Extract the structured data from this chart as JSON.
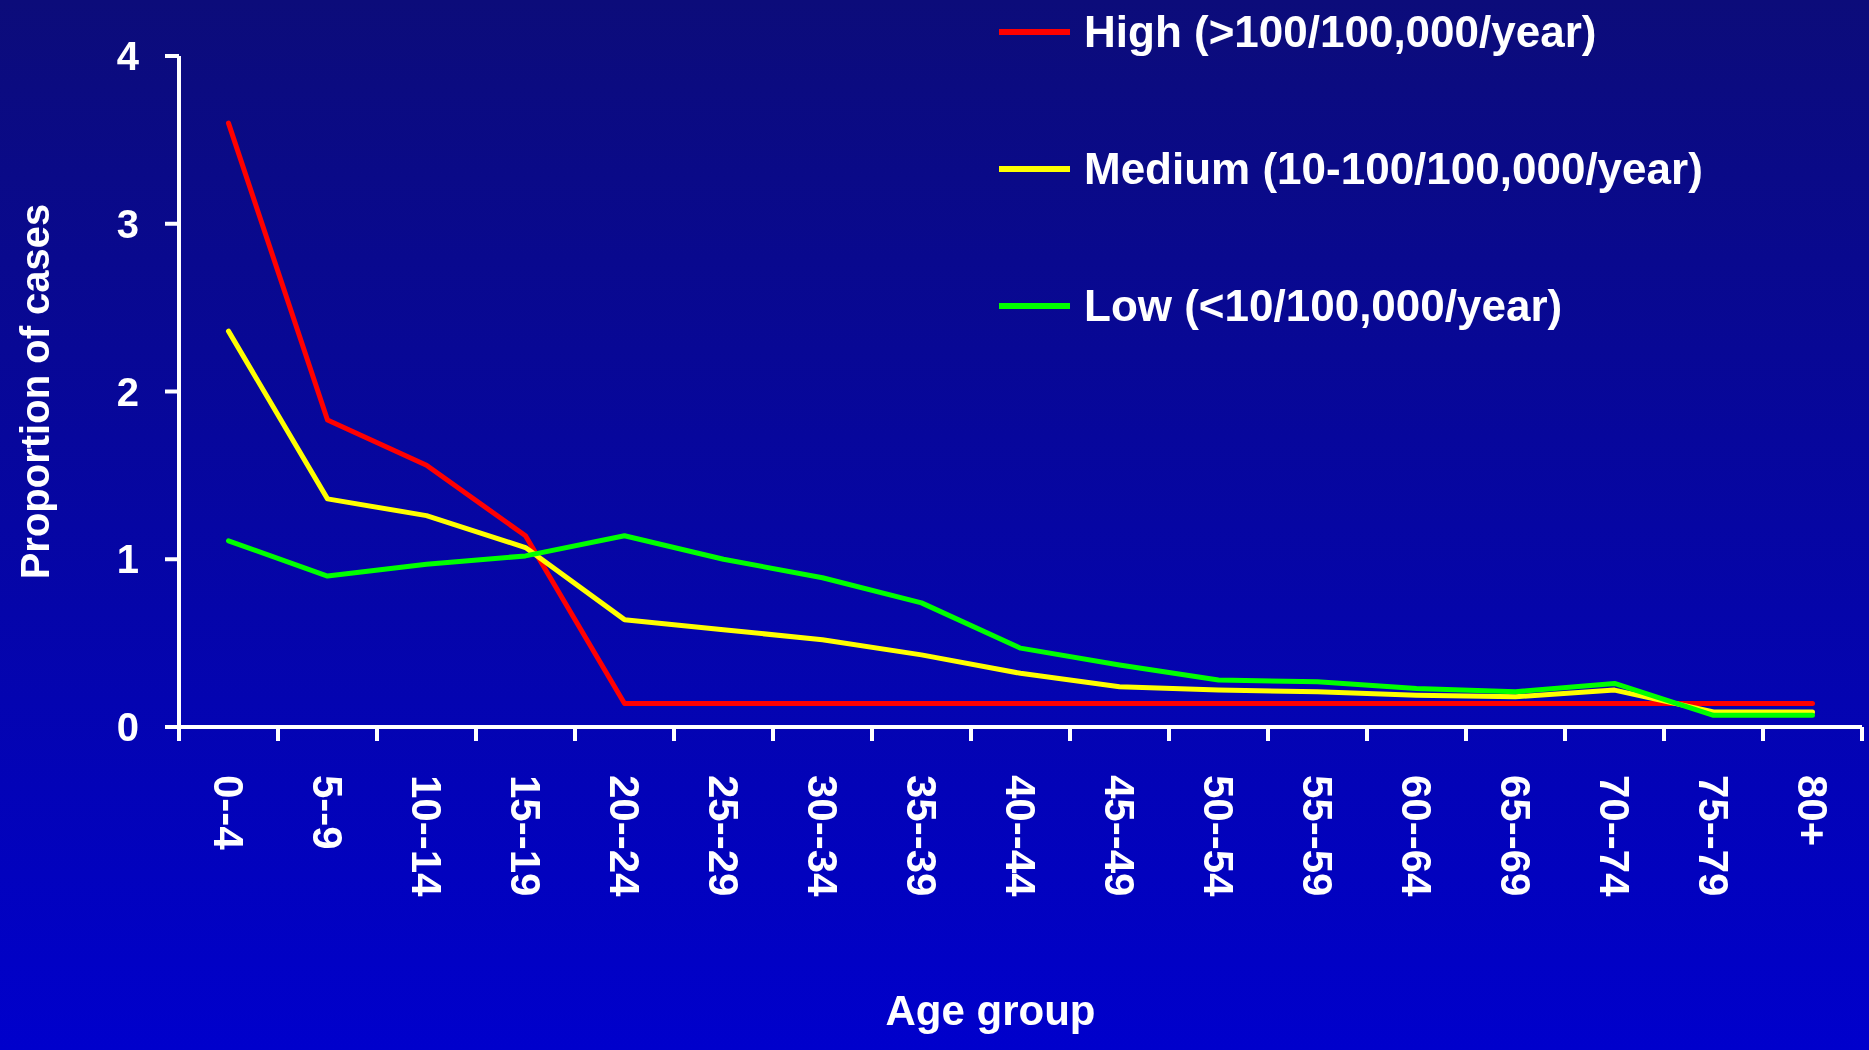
{
  "chart_data": {
    "type": "line",
    "xlabel": "Age group",
    "ylabel": "Proportion of cases",
    "categories": [
      "0--4",
      "5--9",
      "10--14",
      "15--19",
      "20--24",
      "25--29",
      "30--34",
      "35--39",
      "40--44",
      "45--49",
      "50--54",
      "55--59",
      "60--64",
      "65--69",
      "70--74",
      "75--79",
      "80+"
    ],
    "series": [
      {
        "name": "High (>100/100,000/year)",
        "color": "#ff0000",
        "values": [
          3.6,
          1.83,
          1.56,
          1.14,
          0.14,
          0.14,
          0.14,
          0.14,
          0.14,
          0.14,
          0.14,
          0.14,
          0.14,
          0.14,
          0.14,
          0.14,
          0.14
        ]
      },
      {
        "name": "Medium (10-100/100,000/year)",
        "color": "#ffff00",
        "values": [
          2.36,
          1.36,
          1.26,
          1.07,
          0.64,
          0.58,
          0.52,
          0.43,
          0.32,
          0.24,
          0.22,
          0.21,
          0.19,
          0.18,
          0.22,
          0.09,
          0.09
        ]
      },
      {
        "name": "Low (<10/100,000/year)",
        "color": "#00ff00",
        "values": [
          1.11,
          0.9,
          0.97,
          1.02,
          1.14,
          1.0,
          0.89,
          0.74,
          0.47,
          0.37,
          0.28,
          0.27,
          0.23,
          0.21,
          0.26,
          0.07,
          0.07
        ]
      }
    ],
    "ylim": [
      0,
      4
    ],
    "yticks": [
      0,
      1,
      2,
      3,
      4
    ],
    "grid": false,
    "legend": "top right",
    "marker": "none",
    "line_style": "solid"
  }
}
